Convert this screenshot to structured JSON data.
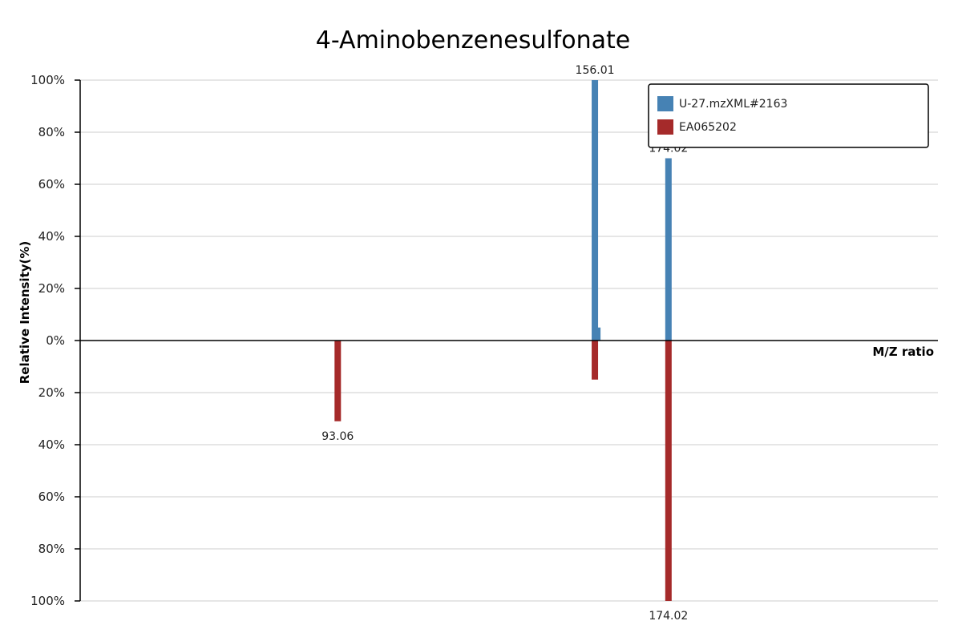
{
  "chart_data": {
    "type": "bar",
    "title": "4-Aminobenzenesulfonate",
    "xlabel": "M/Z ratio",
    "ylabel": "Relative Intensity(%)",
    "ylim": [
      -100,
      100
    ],
    "y_tick_labels": [
      "100%",
      "80%",
      "60%",
      "40%",
      "20%",
      "0%",
      "20%",
      "40%",
      "60%",
      "80%",
      "100%"
    ],
    "y_tick_values": [
      100,
      80,
      60,
      40,
      20,
      0,
      -20,
      -40,
      -60,
      -80,
      -100
    ],
    "xlim": [
      30,
      240
    ],
    "grid": true,
    "legend_position": "top-right",
    "series": [
      {
        "name": "U-27.mzXML#2163",
        "color": "#4682b4",
        "direction": "up",
        "peaks": [
          {
            "mz": 156.01,
            "intensity": 100,
            "label": "156.01"
          },
          {
            "mz": 157.0,
            "intensity": 5,
            "label": ""
          },
          {
            "mz": 174.02,
            "intensity": 70,
            "label": "174.02"
          }
        ]
      },
      {
        "name": "EA065202",
        "color": "#a52a2a",
        "direction": "down",
        "peaks": [
          {
            "mz": 93.06,
            "intensity": 31,
            "label": "93.06"
          },
          {
            "mz": 156.01,
            "intensity": 15,
            "label": ""
          },
          {
            "mz": 174.02,
            "intensity": 100,
            "label": "174.02"
          }
        ]
      }
    ]
  }
}
